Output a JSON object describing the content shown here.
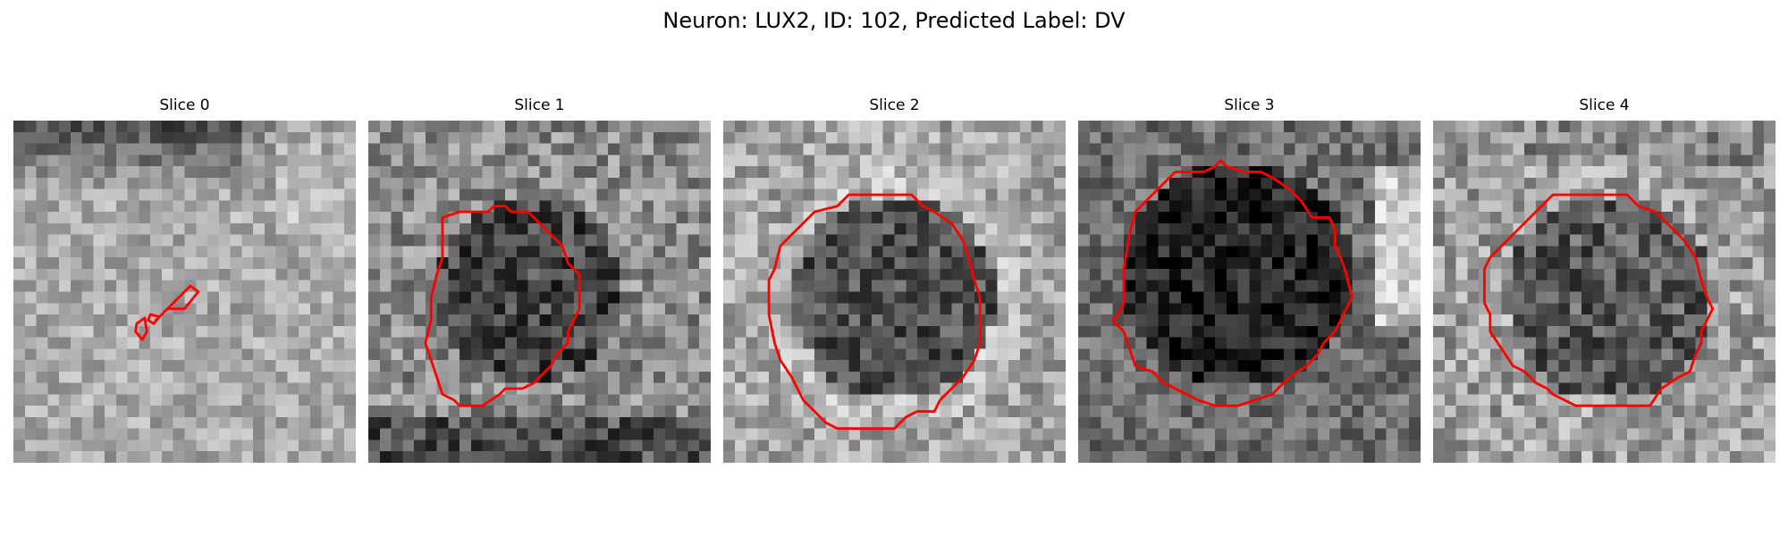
{
  "figure": {
    "title": "Neuron: LUX2, ID: 102, Predicted Label: DV"
  },
  "panels": [
    {
      "title": "Slice 0",
      "contour_color": "#ff0000",
      "image_name": "slice-0-grayscale-image"
    },
    {
      "title": "Slice 1",
      "contour_color": "#ff0000",
      "image_name": "slice-1-grayscale-image"
    },
    {
      "title": "Slice 2",
      "contour_color": "#ff0000",
      "image_name": "slice-2-grayscale-image"
    },
    {
      "title": "Slice 3",
      "contour_color": "#ff0000",
      "image_name": "slice-3-grayscale-image"
    },
    {
      "title": "Slice 4",
      "contour_color": "#ff0000",
      "image_name": "slice-4-grayscale-image"
    }
  ]
}
